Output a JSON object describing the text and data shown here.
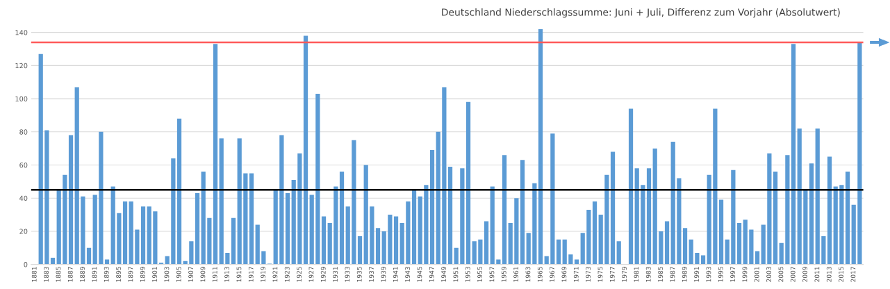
{
  "chart_data": {
    "type": "bar",
    "title": "Deutschland Niederschlagssumme: Juni + Juli, Differenz zum Vorjahr (Absolutwert)",
    "categories": [
      "1881",
      null,
      "1883",
      null,
      "1885",
      null,
      "1887",
      null,
      "1889",
      null,
      "1891",
      null,
      "1893",
      null,
      "1895",
      null,
      "1897",
      null,
      "1899",
      null,
      "1901",
      null,
      "1903",
      null,
      "1905",
      null,
      "1907",
      null,
      "1909",
      null,
      "1911",
      null,
      "1913",
      null,
      "1915",
      null,
      "1917",
      null,
      "1919",
      null,
      "1921",
      null,
      "1923",
      null,
      "1925",
      null,
      "1927",
      null,
      "1929",
      null,
      "1931",
      null,
      "1933",
      null,
      "1935",
      null,
      "1937",
      null,
      "1939",
      null,
      "1941",
      null,
      "1943",
      null,
      "1945",
      null,
      "1947",
      null,
      "1949",
      null,
      "1951",
      null,
      "1953",
      null,
      "1955",
      null,
      "1957",
      null,
      "1959",
      null,
      "1961",
      null,
      "1963",
      null,
      "1965",
      null,
      "1967",
      null,
      "1969",
      null,
      "1971",
      null,
      "1973",
      null,
      "1975",
      null,
      "1977",
      null,
      "1979",
      null,
      "1981",
      null,
      "1983",
      null,
      "1985",
      null,
      "1987",
      null,
      "1989",
      null,
      "1991",
      null,
      "1993",
      null,
      "1995",
      null,
      "1997",
      null,
      "1999",
      null,
      "2001",
      null,
      "2003",
      null,
      "2005",
      null,
      "2007",
      null,
      "2009",
      null,
      "2011",
      null,
      "2013",
      null,
      "2015",
      null,
      "2017",
      null
    ],
    "values": [
      null,
      127,
      81,
      4,
      45,
      54,
      78,
      107,
      41,
      10,
      42,
      80,
      3,
      47,
      31,
      38,
      38,
      21,
      35,
      35,
      32,
      1,
      5,
      64,
      88,
      2,
      14,
      43,
      56,
      28,
      133,
      76,
      7,
      28,
      76,
      55,
      55,
      24,
      8,
      0.5,
      45,
      78,
      43,
      51,
      67,
      138,
      42,
      103,
      29,
      25,
      47,
      56,
      35,
      75,
      17,
      60,
      35,
      22,
      20,
      30,
      29,
      25,
      38,
      45,
      41,
      48,
      69,
      80,
      107,
      59,
      10,
      58,
      98,
      14,
      15,
      26,
      47,
      3,
      66,
      25,
      40,
      63,
      19,
      49,
      142,
      5,
      79,
      15,
      15,
      6,
      3,
      19,
      33,
      38,
      30,
      54,
      68,
      14,
      0,
      94,
      58,
      48,
      58,
      70,
      20,
      26,
      74,
      52,
      22,
      15,
      7,
      5.5,
      54,
      94,
      39,
      15,
      57,
      25,
      27,
      21,
      8,
      24,
      67,
      56,
      13,
      66,
      133,
      82,
      45,
      61,
      82,
      17,
      65,
      47,
      48,
      56,
      36,
      134
    ],
    "color": "#5b9bd5",
    "ylim": [
      0,
      143
    ],
    "yticks": [
      0,
      20,
      40,
      60,
      80,
      100,
      120,
      140
    ],
    "grid": "y",
    "legend": false,
    "ref_lines": [
      {
        "axis": "y",
        "value": 134,
        "label": null,
        "color": "#ff5a5a"
      },
      {
        "axis": "y",
        "value": 45,
        "label": null,
        "color": "#000000"
      }
    ]
  }
}
